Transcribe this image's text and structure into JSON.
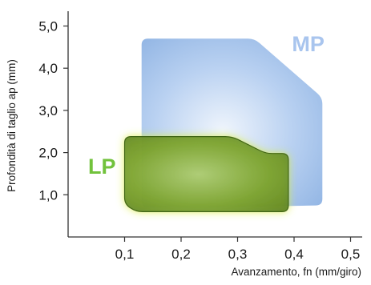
{
  "chart_data": {
    "type": "area",
    "title": "",
    "xlabel": "Avanzamento, fn (mm/giro)",
    "ylabel": "Profondità di taglio ap (mm)",
    "xlim": [
      0,
      0.52
    ],
    "ylim": [
      0,
      5.5
    ],
    "xticks": [
      {
        "value": 0.1,
        "label": "0,1"
      },
      {
        "value": 0.2,
        "label": "0,2"
      },
      {
        "value": 0.3,
        "label": "0,3"
      },
      {
        "value": 0.4,
        "label": "0,4"
      },
      {
        "value": 0.5,
        "label": "0,5"
      }
    ],
    "yticks": [
      {
        "value": 1.0,
        "label": "1,0"
      },
      {
        "value": 2.0,
        "label": "2,0"
      },
      {
        "value": 3.0,
        "label": "3,0"
      },
      {
        "value": 4.0,
        "label": "4,0"
      },
      {
        "value": 5.0,
        "label": "5,0"
      }
    ],
    "grid": false,
    "series": [
      {
        "name": "MP",
        "color": "#8fb4e6",
        "label_color": "#a9c5ee",
        "label_at": [
          0.425,
          4.4
        ],
        "polygon": [
          [
            0.13,
            4.7
          ],
          [
            0.33,
            4.7
          ],
          [
            0.45,
            3.3
          ],
          [
            0.45,
            0.75
          ],
          [
            0.27,
            0.7
          ],
          [
            0.13,
            0.7
          ]
        ]
      },
      {
        "name": "LP",
        "color": "#6aa02a",
        "label_color": "#72c23c",
        "label_at": [
          0.06,
          1.5
        ],
        "polygon": [
          [
            0.1,
            2.38
          ],
          [
            0.29,
            2.38
          ],
          [
            0.35,
            1.98
          ],
          [
            0.39,
            1.98
          ],
          [
            0.39,
            0.6
          ],
          [
            0.12,
            0.6
          ],
          [
            0.1,
            0.78
          ]
        ]
      }
    ]
  }
}
